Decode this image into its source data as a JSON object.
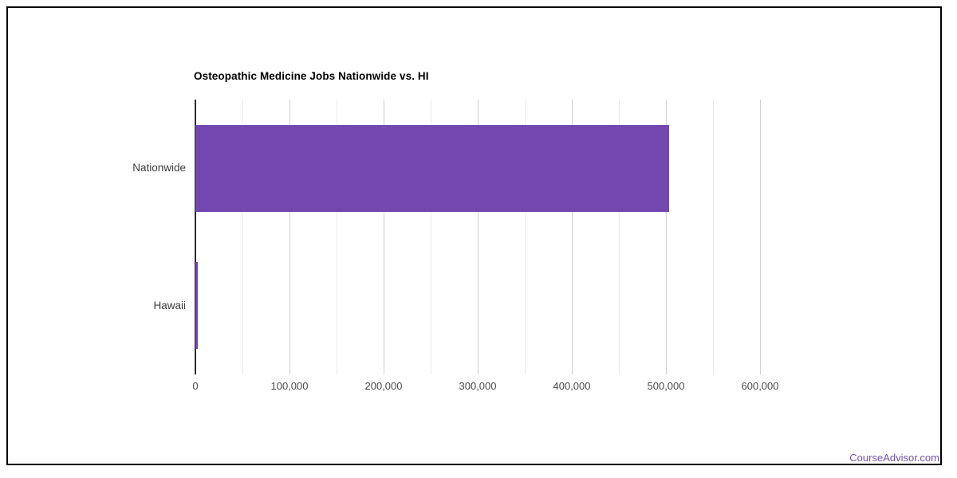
{
  "page": {
    "background_color": "#ffffff",
    "frame_border_color": "#000000"
  },
  "chart_data": {
    "type": "bar",
    "orientation": "horizontal",
    "title": "Osteopathic Medicine Jobs Nationwide vs. HI",
    "categories": [
      "Nationwide",
      "Hawaii"
    ],
    "values": [
      503000,
      2600
    ],
    "xlabel": "",
    "ylabel": "",
    "xlim": [
      0,
      650000
    ],
    "gridline_interval": 50000,
    "label_interval": 100000,
    "x_tick_labels": [
      "0",
      "100,000",
      "200,000",
      "300,000",
      "400,000",
      "500,000",
      "600,000"
    ],
    "grid": true,
    "legend": false,
    "bar_color": "#7347b0",
    "axis_line_color": "#2b2b2b",
    "major_gridline_color": "#cfcfcf",
    "minor_gridline_color": "#e9e9e9"
  },
  "footer": {
    "link_label": "CourseAdvisor.com",
    "link_color": "#7151b5"
  }
}
